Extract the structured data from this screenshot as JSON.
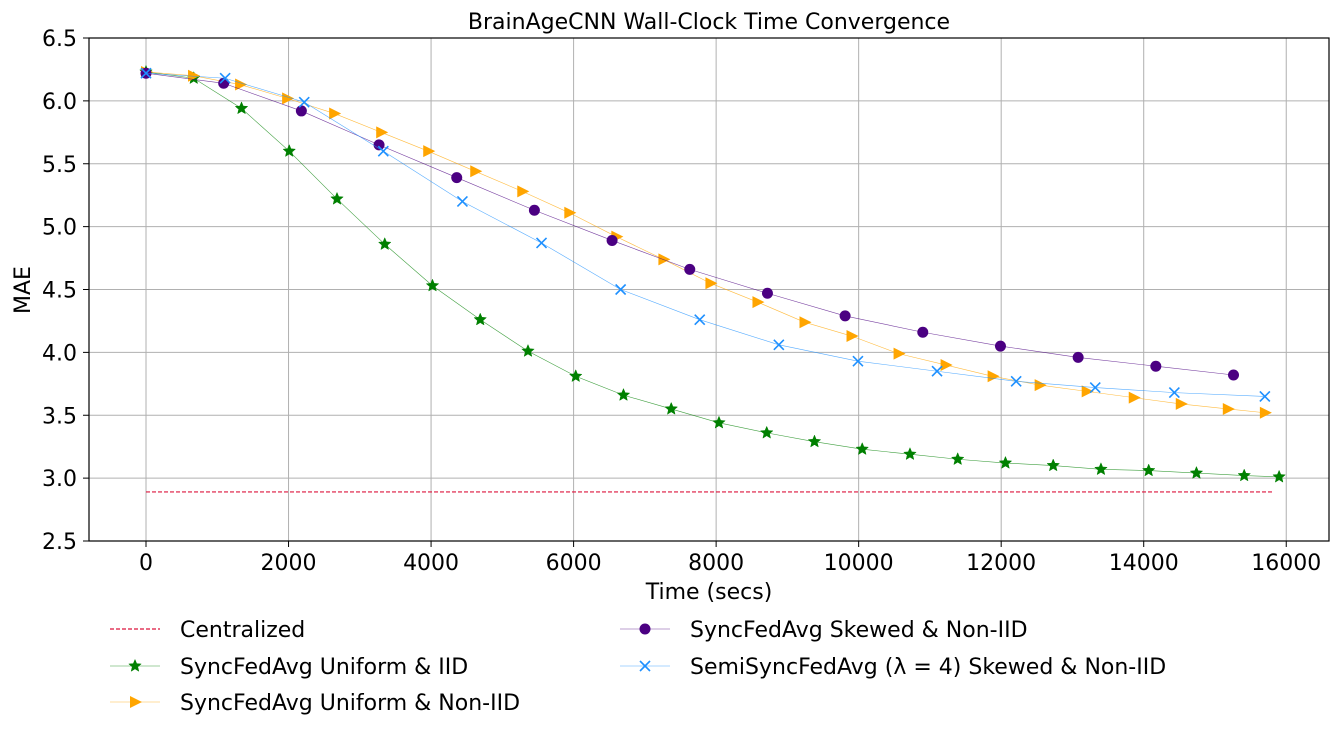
{
  "chart_data": {
    "type": "line",
    "title": "BrainAgeCNN Wall-Clock Time Convergence",
    "xlabel": "Time (secs)",
    "ylabel": "MAE",
    "xlim": [
      -800,
      16600
    ],
    "ylim": [
      2.5,
      6.5
    ],
    "xticks": [
      0,
      2000,
      4000,
      6000,
      8000,
      10000,
      12000,
      14000,
      16000
    ],
    "yticks": [
      2.5,
      3.0,
      3.5,
      4.0,
      4.5,
      5.0,
      5.5,
      6.0,
      6.5
    ],
    "xtick_labels": [
      "0",
      "2000",
      "4000",
      "6000",
      "8000",
      "10000",
      "12000",
      "14000",
      "16000"
    ],
    "ytick_labels": [
      "2.5",
      "3.0",
      "3.5",
      "4.0",
      "4.5",
      "5.0",
      "5.5",
      "6.0",
      "6.5"
    ],
    "grid": true,
    "legend_position": "below",
    "series": [
      {
        "name": "Centralized",
        "color": "#dc143c",
        "marker": "none",
        "style": "dashed",
        "x": [
          0,
          15800
        ],
        "y": [
          2.89,
          2.89
        ]
      },
      {
        "name": "SyncFedAvg Uniform & IID",
        "color": "#008000",
        "marker": "star",
        "style": "solid",
        "x": [
          0,
          670,
          1340,
          2010,
          2680,
          3350,
          4020,
          4690,
          5360,
          6030,
          6700,
          7370,
          8040,
          8710,
          9380,
          10050,
          10720,
          11390,
          12060,
          12730,
          13400,
          14070,
          14740,
          15410,
          15900
        ],
        "y": [
          6.23,
          6.18,
          5.94,
          5.6,
          5.22,
          4.86,
          4.53,
          4.26,
          4.01,
          3.81,
          3.66,
          3.55,
          3.44,
          3.36,
          3.29,
          3.23,
          3.19,
          3.15,
          3.12,
          3.1,
          3.07,
          3.06,
          3.04,
          3.02,
          3.01
        ]
      },
      {
        "name": "SyncFedAvg Uniform & Non-IID",
        "color": "#ffa500",
        "marker": "triangle-right",
        "style": "solid",
        "x": [
          0,
          660,
          1320,
          1980,
          2640,
          3300,
          3960,
          4620,
          5280,
          5940,
          6600,
          7260,
          7920,
          8580,
          9240,
          9900,
          10560,
          11220,
          11880,
          12540,
          13200,
          13860,
          14520,
          15180,
          15700
        ],
        "y": [
          6.23,
          6.2,
          6.13,
          6.02,
          5.9,
          5.75,
          5.6,
          5.44,
          5.28,
          5.11,
          4.92,
          4.74,
          4.55,
          4.4,
          4.24,
          4.13,
          3.99,
          3.9,
          3.81,
          3.74,
          3.69,
          3.64,
          3.59,
          3.55,
          3.52
        ]
      },
      {
        "name": "SyncFedAvg Skewed & Non-IID",
        "color": "#4b0082",
        "marker": "circle",
        "style": "solid",
        "x": [
          0,
          1090,
          2180,
          3270,
          4360,
          5450,
          6540,
          7630,
          8720,
          9810,
          10900,
          11990,
          13080,
          14170,
          15260
        ],
        "y": [
          6.22,
          6.14,
          5.92,
          5.65,
          5.39,
          5.13,
          4.89,
          4.66,
          4.47,
          4.29,
          4.16,
          4.05,
          3.96,
          3.89,
          3.82
        ]
      },
      {
        "name": "SemiSyncFedAvg (λ = 4) Skewed & Non-IID",
        "color": "#1e90ff",
        "marker": "x",
        "style": "solid",
        "x": [
          0,
          1110,
          2220,
          3330,
          4440,
          5550,
          6660,
          7770,
          8880,
          9990,
          11100,
          12210,
          13320,
          14430,
          15700
        ],
        "y": [
          6.22,
          6.18,
          5.99,
          5.6,
          5.2,
          4.87,
          4.5,
          4.26,
          4.06,
          3.93,
          3.85,
          3.77,
          3.72,
          3.68,
          3.65
        ]
      }
    ]
  },
  "legend": {
    "items": [
      "Centralized",
      "SyncFedAvg Uniform & IID",
      "SyncFedAvg Uniform & Non-IID",
      "SyncFedAvg Skewed & Non-IID",
      "SemiSyncFedAvg (λ = 4) Skewed & Non-IID"
    ]
  }
}
